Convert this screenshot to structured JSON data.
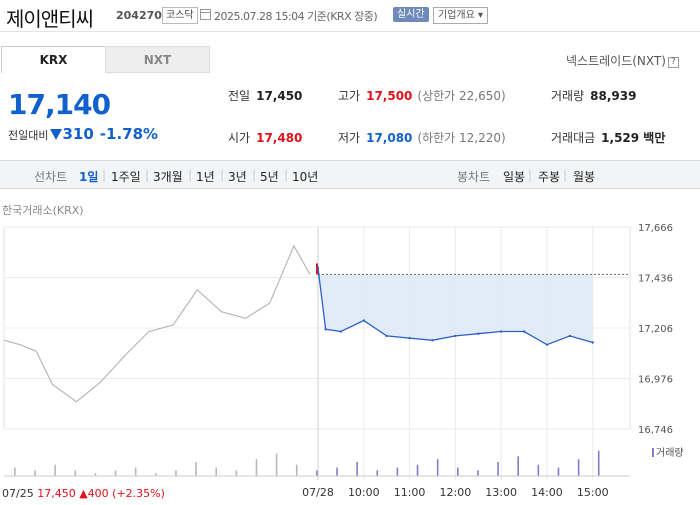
{
  "header": {
    "company": "제이앤티씨",
    "code": "204270",
    "market": "코스닥",
    "datetime": "2025.07.28 15:04 기준(KRX 장중)",
    "realtime_label": "실시간",
    "info_label": "기업개요 ▾"
  },
  "tabs": {
    "krx": "KRX",
    "nxt": "NXT"
  },
  "nxt_link": "넥스트레이드(NXT)",
  "nxt_help": "?",
  "price": {
    "current": "17,140",
    "change_label": "전일대비",
    "change": "310",
    "change_pct": "-1.78%",
    "direction": "down"
  },
  "stats": {
    "prev_label": "전일",
    "prev": "17,450",
    "high_label": "고가",
    "high": "17,500",
    "upper_limit": "(상한가 22,650)",
    "volume_label": "거래량",
    "volume": "88,939",
    "open_label": "시가",
    "open": "17,480",
    "low_label": "저가",
    "low": "17,080",
    "lower_limit": "(하한가 12,220)",
    "value_label": "거래대금",
    "value": "1,529 백만"
  },
  "toolbar": {
    "line_label": "선차트",
    "line_periods": [
      "1일",
      "1주일",
      "3개월",
      "1년",
      "3년",
      "5년",
      "10년"
    ],
    "active_period": "1일",
    "candle_label": "봉차트",
    "candle_periods": [
      "일봉",
      "주봉",
      "월봉"
    ]
  },
  "chart": {
    "exchange_label": "한국거래소(KRX)",
    "volume_legend": "거래량",
    "prev_day_label": "07/25",
    "prev_day_close": "17,450",
    "prev_day_change": "▲400",
    "prev_day_pct": "(+2.35%)",
    "colors": {
      "prev_line": "#b8b8b8",
      "today_line": "#2d5fc9",
      "fill": "#dde9f8",
      "volume": "#8a78c8",
      "up": "#e2101a"
    }
  },
  "chart_data": {
    "type": "line",
    "title": "",
    "xlabel": "",
    "ylabel": "",
    "y_ticks": [
      16746,
      16976,
      17206,
      17436,
      17666
    ],
    "ylim": [
      16746,
      17666
    ],
    "x_ticks": [
      "07/25",
      "07/28",
      "10:00",
      "11:00",
      "12:00",
      "13:00",
      "14:00",
      "15:00"
    ],
    "reference_line": 17450,
    "series": [
      {
        "name": "",
        "x": [
          "07/25 09:00",
          "07/25 09:20",
          "07/25 09:40",
          "07/25 10:00",
          "07/25 10:30",
          "07/25 11:00",
          "07/25 11:30",
          "07/25 12:00",
          "07/25 12:30",
          "07/25 13:00",
          "07/25 13:30",
          "07/25 14:00",
          "07/25 14:30",
          "07/25 15:00",
          "07/25 15:20"
        ],
        "values": [
          17150,
          17130,
          17100,
          16950,
          16870,
          16960,
          17080,
          17190,
          17220,
          17380,
          17280,
          17250,
          17320,
          17580,
          17450
        ]
      },
      {
        "name": "",
        "x": [
          "09:00",
          "09:10",
          "09:30",
          "10:00",
          "10:30",
          "11:00",
          "11:30",
          "12:00",
          "12:30",
          "13:00",
          "13:30",
          "14:00",
          "14:30",
          "15:00"
        ],
        "values": [
          17480,
          17200,
          17190,
          17240,
          17170,
          17160,
          17150,
          17170,
          17180,
          17190,
          17190,
          17130,
          17170,
          17140
        ]
      }
    ],
    "volume": [
      3,
      2,
      4,
      2,
      1,
      2,
      3,
      1,
      2,
      5,
      3,
      2,
      6,
      8,
      4,
      2,
      3,
      5,
      2,
      3,
      4,
      6,
      3,
      2,
      5,
      7,
      4,
      3,
      6,
      9
    ]
  }
}
